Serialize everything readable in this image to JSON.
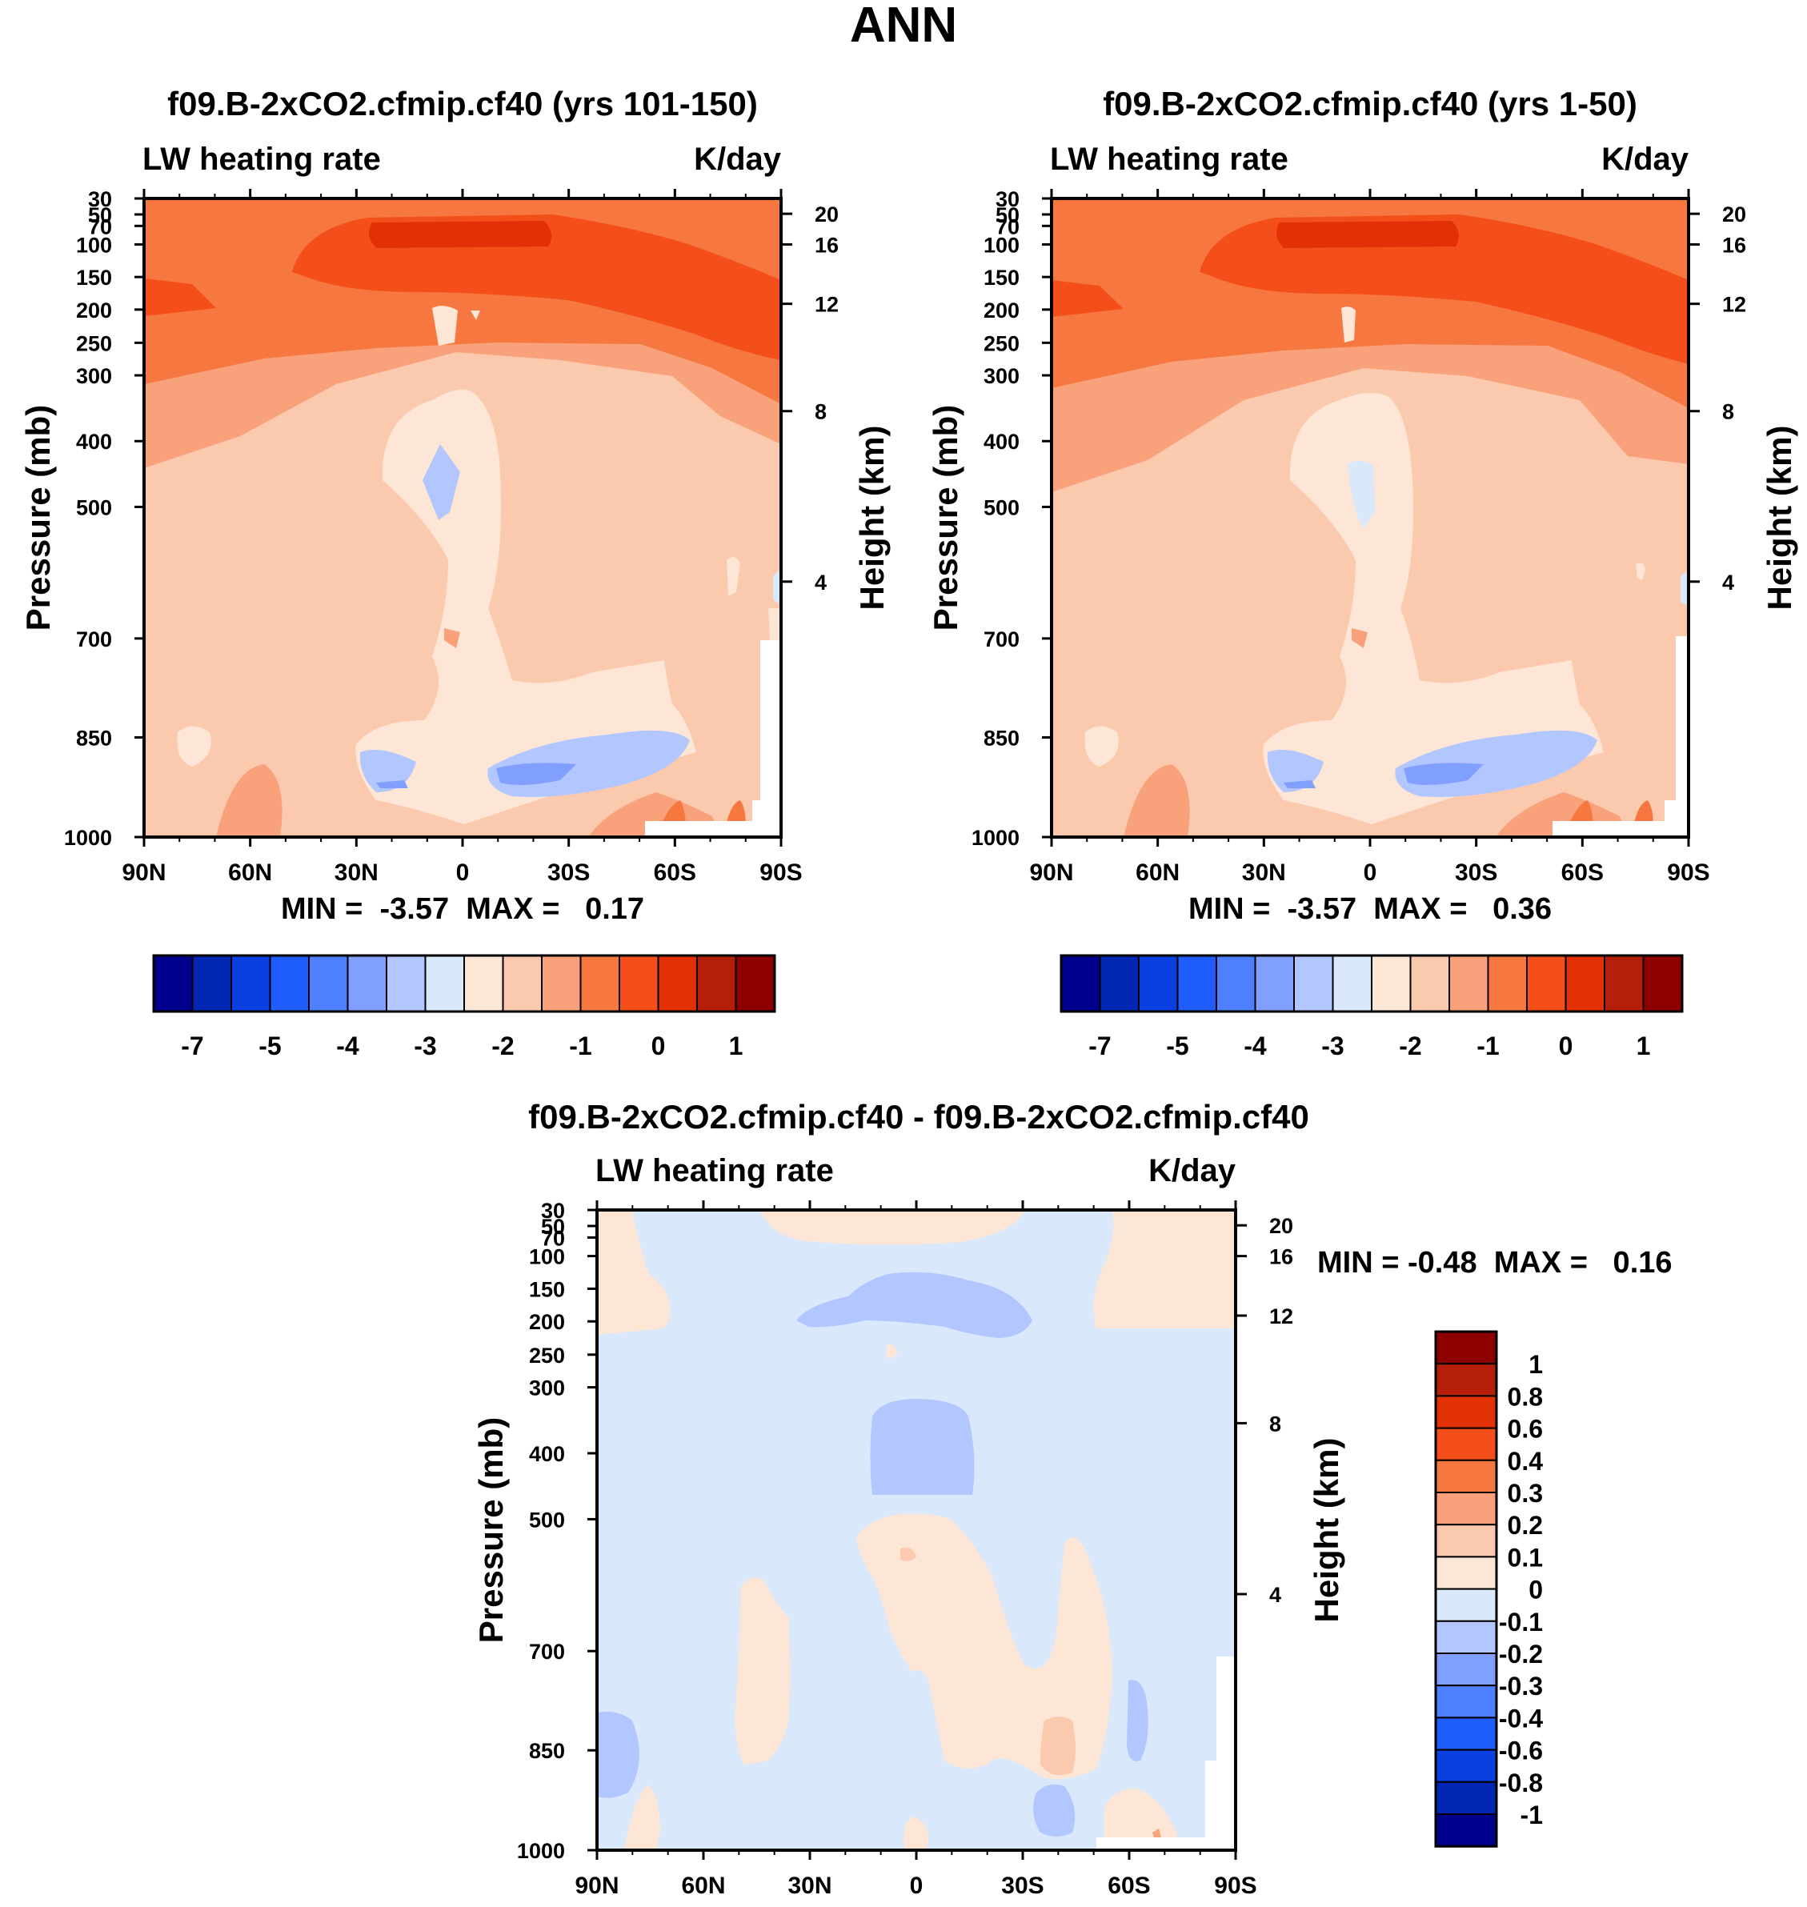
{
  "figure": {
    "title": "ANN"
  },
  "colors": {
    "lev": [
      "#00008c",
      "#0026b3",
      "#0a3fe0",
      "#1f5dff",
      "#4d7fff",
      "#809fff",
      "#b2c6ff",
      "#d9e8fb",
      "#fde6d5",
      "#fbc9ad",
      "#f8a17a",
      "#f6773f",
      "#f44f1a",
      "#e23106",
      "#b51f0a",
      "#8c0000"
    ],
    "frame": "#000000"
  },
  "chart_data": [
    {
      "id": "panelA",
      "type": "contour",
      "title": "f09.B-2xCO2.cfmip.cf40 (yrs 101-150)",
      "left_label": "LW heating rate",
      "right_label": "K/day",
      "ylabel": "Pressure (mb)",
      "y2label": "Height (km)",
      "x_ticks": [
        "90N",
        "60N",
        "30N",
        "0",
        "30S",
        "60S",
        "90S"
      ],
      "y_ticks": [
        "30",
        "50",
        "70",
        "100",
        "150",
        "200",
        "250",
        "300",
        "400",
        "500",
        "700",
        "850",
        "1000"
      ],
      "y2_ticks": [
        "20",
        "16",
        "12",
        "8",
        "4"
      ],
      "ylim": [
        30,
        1000
      ],
      "stats": "MIN =  -3.57  MAX =   0.17",
      "colorbar_labels": [
        "-7",
        "-5",
        "-4",
        "-3",
        "-2",
        "-1",
        "0",
        "1"
      ]
    },
    {
      "id": "panelB",
      "type": "contour",
      "title": "f09.B-2xCO2.cfmip.cf40 (yrs 1-50)",
      "left_label": "LW heating rate",
      "right_label": "K/day",
      "ylabel": "Pressure (mb)",
      "y2label": "Height (km)",
      "x_ticks": [
        "90N",
        "60N",
        "30N",
        "0",
        "30S",
        "60S",
        "90S"
      ],
      "y_ticks": [
        "30",
        "50",
        "70",
        "100",
        "150",
        "200",
        "250",
        "300",
        "400",
        "500",
        "700",
        "850",
        "1000"
      ],
      "y2_ticks": [
        "20",
        "16",
        "12",
        "8",
        "4"
      ],
      "ylim": [
        30,
        1000
      ],
      "stats": "MIN =  -3.57  MAX =   0.36",
      "colorbar_labels": [
        "-7",
        "-5",
        "-4",
        "-3",
        "-2",
        "-1",
        "0",
        "1"
      ]
    },
    {
      "id": "panelC",
      "type": "contour",
      "title": "f09.B-2xCO2.cfmip.cf40 - f09.B-2xCO2.cfmip.cf40",
      "left_label": "LW heating rate",
      "right_label": "K/day",
      "ylabel": "Pressure (mb)",
      "y2label": "Height (km)",
      "x_ticks": [
        "90N",
        "60N",
        "30N",
        "0",
        "30S",
        "60S",
        "90S"
      ],
      "y_ticks": [
        "30",
        "50",
        "70",
        "100",
        "150",
        "200",
        "250",
        "300",
        "400",
        "500",
        "700",
        "850",
        "1000"
      ],
      "y2_ticks": [
        "20",
        "16",
        "12",
        "8",
        "4"
      ],
      "ylim": [
        30,
        1000
      ],
      "stats": "MIN = -0.48  MAX =   0.16",
      "colorbar_labels": [
        "1",
        "0.8",
        "0.6",
        "0.4",
        "0.3",
        "0.2",
        "0.1",
        "0",
        "-0.1",
        "-0.2",
        "-0.3",
        "-0.4",
        "-0.6",
        "-0.8",
        "-1"
      ]
    }
  ]
}
